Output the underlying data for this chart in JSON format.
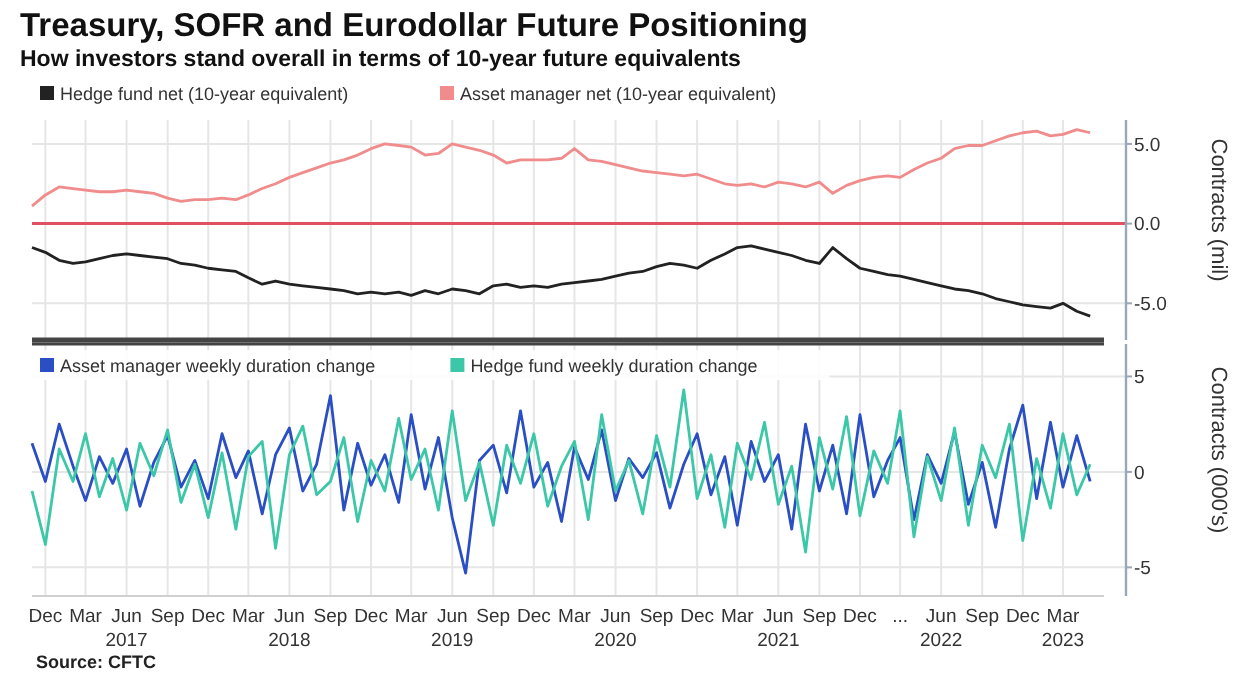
{
  "chart_data": [
    {
      "type": "line",
      "title": "Treasury, SOFR and Eurodollar Future Positioning",
      "subtitle": "How investors stand overall in terms of 10-year future equivalents",
      "ylabel": "Contracts (mil)",
      "legend": "top left",
      "grid": true,
      "tick_labels": "y",
      "x": [
        "2016-11-01",
        "2016-12-01",
        "2017-01-01",
        "2017-02-01",
        "2017-03-01",
        "2017-04-01",
        "2017-05-01",
        "2017-06-01",
        "2017-07-01",
        "2017-08-01",
        "2017-09-01",
        "2017-10-01",
        "2017-11-01",
        "2017-12-01",
        "2018-01-01",
        "2018-02-01",
        "2018-03-01",
        "2018-04-01",
        "2018-05-01",
        "2018-06-01",
        "2018-07-01",
        "2018-08-01",
        "2018-09-01",
        "2018-10-01",
        "2018-11-01",
        "2018-12-01",
        "2019-01-01",
        "2019-02-01",
        "2019-03-01",
        "2019-04-01",
        "2019-05-01",
        "2019-06-01",
        "2019-07-01",
        "2019-08-01",
        "2019-09-01",
        "2019-10-01",
        "2019-11-01",
        "2019-12-01",
        "2020-01-01",
        "2020-02-01",
        "2020-03-01",
        "2020-04-01",
        "2020-05-01",
        "2020-06-01",
        "2020-07-01",
        "2020-08-01",
        "2020-09-01",
        "2020-10-01",
        "2020-11-01",
        "2020-12-01",
        "2021-01-01",
        "2021-02-01",
        "2021-03-01",
        "2021-04-01",
        "2021-05-01",
        "2021-06-01",
        "2021-07-01",
        "2021-08-01",
        "2021-09-01",
        "2021-10-01",
        "2021-11-01",
        "2021-12-01",
        "2022-01-01",
        "2022-02-01",
        "2022-03-01",
        "2022-04-01",
        "2022-05-01",
        "2022-06-01",
        "2022-07-01",
        "2022-08-01",
        "2022-09-01",
        "2022-10-01",
        "2022-11-01",
        "2022-12-01",
        "2023-01-01",
        "2023-02-01",
        "2023-03-01",
        "2023-04-01",
        "2023-05-01"
      ],
      "xlim": [
        "2016-11-01",
        "2023-06-01"
      ],
      "xticks": [
        {
          "value": "2016-12-01",
          "label": null
        },
        {
          "value": "2017-03-01",
          "label": null
        },
        {
          "value": "2017-06-01",
          "label": null
        },
        {
          "value": "2017-09-01",
          "label": null
        },
        {
          "value": "2017-12-01",
          "label": null
        },
        {
          "value": "2018-03-01",
          "label": null
        },
        {
          "value": "2018-06-01",
          "label": null
        },
        {
          "value": "2018-09-01",
          "label": null
        },
        {
          "value": "2018-12-01",
          "label": null
        },
        {
          "value": "2019-03-01",
          "label": null
        },
        {
          "value": "2019-06-01",
          "label": null
        },
        {
          "value": "2019-09-01",
          "label": null
        },
        {
          "value": "2019-12-01",
          "label": null
        },
        {
          "value": "2020-03-01",
          "label": null
        },
        {
          "value": "2020-06-01",
          "label": null
        },
        {
          "value": "2020-09-01",
          "label": null
        },
        {
          "value": "2020-12-01",
          "label": null
        },
        {
          "value": "2021-03-01",
          "label": null
        },
        {
          "value": "2021-06-01",
          "label": null
        },
        {
          "value": "2021-09-01",
          "label": null
        },
        {
          "value": "2021-12-01",
          "label": null
        },
        {
          "value": "2022-03-01",
          "label": null
        },
        {
          "value": "2022-06-01",
          "label": null
        },
        {
          "value": "2022-09-01",
          "label": null
        },
        {
          "value": "2022-12-01",
          "label": null
        },
        {
          "value": "2023-03-01",
          "label": null
        }
      ],
      "ylim": [
        -7.3,
        6.5
      ],
      "yticks": [
        {
          "value": 5,
          "label": "5.0"
        },
        {
          "value": 0,
          "label": "0.0"
        },
        {
          "value": -5,
          "label": "-5.0"
        }
      ],
      "ref_lines": [
        {
          "axis": "y",
          "value": 0,
          "color": "#e0505f"
        }
      ],
      "series": [
        {
          "name": "Hedge fund net (10-year equivalent)",
          "color": "#222222",
          "values": [
            -1.5,
            -1.8,
            -2.3,
            -2.5,
            -2.4,
            -2.2,
            -2.0,
            -1.9,
            -2.0,
            -2.1,
            -2.2,
            -2.5,
            -2.6,
            -2.8,
            -2.9,
            -3.0,
            -3.4,
            -3.8,
            -3.6,
            -3.8,
            -3.9,
            -4.0,
            -4.1,
            -4.2,
            -4.4,
            -4.3,
            -4.4,
            -4.3,
            -4.5,
            -4.2,
            -4.4,
            -4.1,
            -4.2,
            -4.4,
            -3.9,
            -3.8,
            -4.0,
            -3.9,
            -4.0,
            -3.8,
            -3.7,
            -3.6,
            -3.5,
            -3.3,
            -3.1,
            -3.0,
            -2.7,
            -2.5,
            -2.6,
            -2.8,
            -2.3,
            -1.9,
            -1.5,
            -1.4,
            -1.6,
            -1.8,
            -2.0,
            -2.3,
            -2.5,
            -1.5,
            -2.2,
            -2.8,
            -3.0,
            -3.2,
            -3.3,
            -3.5,
            -3.7,
            -3.9,
            -4.1,
            -4.2,
            -4.4,
            -4.7,
            -4.9,
            -5.1,
            -5.2,
            -5.3,
            -5.0,
            -5.5,
            -5.8
          ]
        },
        {
          "name": "Asset manager net (10-year equivalent)",
          "color": "#f08c8c",
          "values": [
            1.1,
            1.8,
            2.3,
            2.2,
            2.1,
            2.0,
            2.0,
            2.1,
            2.0,
            1.9,
            1.6,
            1.4,
            1.5,
            1.5,
            1.6,
            1.5,
            1.8,
            2.2,
            2.5,
            2.9,
            3.2,
            3.5,
            3.8,
            4.0,
            4.3,
            4.7,
            5.0,
            4.9,
            4.8,
            4.3,
            4.4,
            5.0,
            4.8,
            4.6,
            4.3,
            3.8,
            4.0,
            4.0,
            4.0,
            4.1,
            4.7,
            4.0,
            3.9,
            3.7,
            3.5,
            3.3,
            3.2,
            3.1,
            3.0,
            3.1,
            2.8,
            2.5,
            2.4,
            2.5,
            2.3,
            2.6,
            2.5,
            2.3,
            2.6,
            1.9,
            2.4,
            2.7,
            2.9,
            3.0,
            2.9,
            3.4,
            3.8,
            4.1,
            4.7,
            4.9,
            4.9,
            5.2,
            5.5,
            5.7,
            5.8,
            5.5,
            5.6,
            5.9,
            5.7
          ]
        }
      ]
    },
    {
      "type": "line",
      "ylabel": "Contracts (000's)",
      "legend": "top left",
      "grid": true,
      "annotations": [
        "Source: CFTC"
      ],
      "x": [
        "2016-11-01",
        "2016-12-01",
        "2017-01-01",
        "2017-02-01",
        "2017-03-01",
        "2017-04-01",
        "2017-05-01",
        "2017-06-01",
        "2017-07-01",
        "2017-08-01",
        "2017-09-01",
        "2017-10-01",
        "2017-11-01",
        "2017-12-01",
        "2018-01-01",
        "2018-02-01",
        "2018-03-01",
        "2018-04-01",
        "2018-05-01",
        "2018-06-01",
        "2018-07-01",
        "2018-08-01",
        "2018-09-01",
        "2018-10-01",
        "2018-11-01",
        "2018-12-01",
        "2019-01-01",
        "2019-02-01",
        "2019-03-01",
        "2019-04-01",
        "2019-05-01",
        "2019-06-01",
        "2019-07-01",
        "2019-08-01",
        "2019-09-01",
        "2019-10-01",
        "2019-11-01",
        "2019-12-01",
        "2020-01-01",
        "2020-02-01",
        "2020-03-01",
        "2020-04-01",
        "2020-05-01",
        "2020-06-01",
        "2020-07-01",
        "2020-08-01",
        "2020-09-01",
        "2020-10-01",
        "2020-11-01",
        "2020-12-01",
        "2021-01-01",
        "2021-02-01",
        "2021-03-01",
        "2021-04-01",
        "2021-05-01",
        "2021-06-01",
        "2021-07-01",
        "2021-08-01",
        "2021-09-01",
        "2021-10-01",
        "2021-11-01",
        "2021-12-01",
        "2022-01-01",
        "2022-02-01",
        "2022-03-01",
        "2022-04-01",
        "2022-05-01",
        "2022-06-01",
        "2022-07-01",
        "2022-08-01",
        "2022-09-01",
        "2022-10-01",
        "2022-11-01",
        "2022-12-01",
        "2023-01-01",
        "2023-02-01",
        "2023-03-01",
        "2023-04-01",
        "2023-05-01"
      ],
      "xlim": [
        "2016-11-01",
        "2023-06-01"
      ],
      "xticks": [
        {
          "value": "2016-12-01",
          "label": "Dec"
        },
        {
          "value": "2017-03-01",
          "label": "Mar"
        },
        {
          "value": "2017-06-01",
          "label": "Jun\n2017"
        },
        {
          "value": "2017-09-01",
          "label": "Sep"
        },
        {
          "value": "2017-12-01",
          "label": "Dec"
        },
        {
          "value": "2018-03-01",
          "label": "Mar"
        },
        {
          "value": "2018-06-01",
          "label": "Jun\n2018"
        },
        {
          "value": "2018-09-01",
          "label": "Sep"
        },
        {
          "value": "2018-12-01",
          "label": "Dec"
        },
        {
          "value": "2019-03-01",
          "label": "Mar"
        },
        {
          "value": "2019-06-01",
          "label": "Jun\n2019"
        },
        {
          "value": "2019-09-01",
          "label": "Sep"
        },
        {
          "value": "2019-12-01",
          "label": "Dec"
        },
        {
          "value": "2020-03-01",
          "label": "Mar"
        },
        {
          "value": "2020-06-01",
          "label": "Jun\n2020"
        },
        {
          "value": "2020-09-01",
          "label": "Sep"
        },
        {
          "value": "2020-12-01",
          "label": "Dec"
        },
        {
          "value": "2021-03-01",
          "label": "Mar"
        },
        {
          "value": "2021-06-01",
          "label": "Jun\n2021"
        },
        {
          "value": "2021-09-01",
          "label": "Sep"
        },
        {
          "value": "2021-12-01",
          "label": "Dec"
        },
        {
          "value": "2022-03-01",
          "label": "..."
        },
        {
          "value": "2022-06-01",
          "label": "Jun\n2022"
        },
        {
          "value": "2022-09-01",
          "label": "Sep"
        },
        {
          "value": "2022-12-01",
          "label": "Dec"
        },
        {
          "value": "2023-03-01",
          "label": "Mar\n2023"
        }
      ],
      "ylim": [
        -6.5,
        6.7
      ],
      "yticks": [
        5,
        0,
        -5
      ],
      "series": [
        {
          "name": "Asset manager weekly duration change",
          "color": "#2a4fc4",
          "values": [
            1.5,
            -0.5,
            2.5,
            0.3,
            -1.5,
            0.8,
            -0.6,
            1.2,
            -1.8,
            0.5,
            1.9,
            -0.8,
            0.6,
            -1.4,
            2.0,
            -0.3,
            1.1,
            -2.2,
            0.9,
            2.3,
            -1.0,
            0.4,
            4.0,
            -2.0,
            1.5,
            -0.7,
            0.9,
            -1.6,
            3.0,
            -0.9,
            1.8,
            -2.4,
            -5.3,
            0.6,
            1.4,
            -1.1,
            3.2,
            -0.8,
            0.5,
            -2.6,
            1.3,
            -0.4,
            2.2,
            -1.5,
            0.7,
            -0.3,
            1.0,
            -1.9,
            0.4,
            2.0,
            -1.2,
            0.8,
            -2.8,
            1.6,
            -0.5,
            0.9,
            -3.0,
            2.5,
            -1.0,
            1.4,
            -2.2,
            3.0,
            -1.3,
            0.6,
            1.8,
            -2.5,
            0.9,
            -0.6,
            2.1,
            -1.7,
            0.5,
            -2.9,
            1.2,
            3.5,
            -1.4,
            2.6,
            -0.8,
            1.9,
            -0.5
          ]
        },
        {
          "name": "Hedge fund weekly duration change",
          "color": "#3cc8a8",
          "values": [
            -1.0,
            -3.8,
            1.2,
            -0.5,
            2.0,
            -1.3,
            0.7,
            -2.0,
            1.5,
            -0.2,
            2.2,
            -1.6,
            0.4,
            -2.4,
            1.0,
            -3.0,
            0.8,
            1.6,
            -4.0,
            0.9,
            2.4,
            -1.2,
            -0.5,
            1.8,
            -2.6,
            0.6,
            -1.0,
            2.8,
            -0.4,
            1.2,
            -2.0,
            3.2,
            -1.5,
            0.5,
            -2.8,
            1.4,
            -0.6,
            2.0,
            -1.8,
            0.3,
            1.6,
            -2.5,
            3.0,
            -1.0,
            0.6,
            -2.2,
            1.9,
            -0.8,
            4.3,
            -1.4,
            0.9,
            -2.9,
            1.5,
            -0.4,
            2.6,
            -1.7,
            0.3,
            -4.2,
            1.8,
            -0.9,
            2.9,
            -2.3,
            1.1,
            -0.6,
            3.2,
            -3.4,
            0.8,
            -1.5,
            2.3,
            -2.8,
            1.4,
            -0.3,
            2.5,
            -3.6,
            0.7,
            -1.9,
            2.0,
            -1.2,
            0.4
          ]
        }
      ]
    }
  ]
}
